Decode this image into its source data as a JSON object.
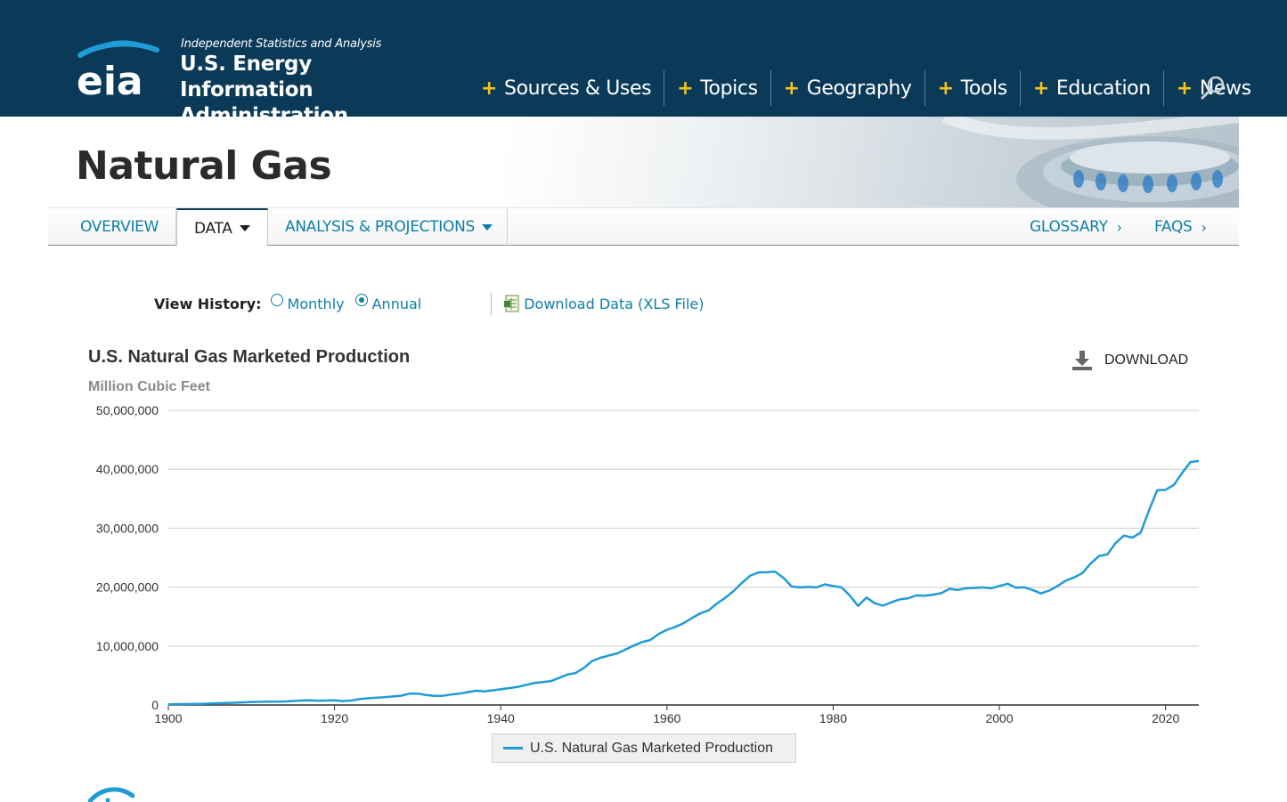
{
  "header": {
    "tagline": "Independent Statistics and Analysis",
    "org_name": "U.S. Energy Information Administration",
    "logo_text": "eia",
    "nav": [
      {
        "label": "Sources & Uses"
      },
      {
        "label": "Topics"
      },
      {
        "label": "Geography"
      },
      {
        "label": "Tools"
      },
      {
        "label": "Education"
      },
      {
        "label": "News"
      }
    ],
    "search_icon": "search-icon"
  },
  "page": {
    "title": "Natural Gas"
  },
  "subnav": {
    "overview": "OVERVIEW",
    "data": "DATA",
    "analysis": "ANALYSIS & PROJECTIONS",
    "glossary": "GLOSSARY",
    "faqs": "FAQS",
    "chevron": "›"
  },
  "controls": {
    "view_history_label": "View History:",
    "options": [
      {
        "label": "Monthly",
        "checked": false
      },
      {
        "label": "Annual",
        "checked": true
      }
    ],
    "download_link": "Download Data (XLS File)"
  },
  "chart": {
    "download_label": "DOWNLOAD",
    "legend_label": "U.S. Natural Gas Marketed Production"
  },
  "colors": {
    "header_bg": "#0b3a59",
    "accent_yellow": "#f5c21b",
    "link_blue": "#0e7fa7",
    "series_line": "#1f9bd7"
  },
  "chart_data": {
    "type": "line",
    "title": "U.S. Natural Gas Marketed Production",
    "subtitle": "Million Cubic Feet",
    "xlabel": "",
    "ylabel": "",
    "xlim": [
      1900,
      2024
    ],
    "ylim": [
      0,
      50000000
    ],
    "x_ticks": [
      1900,
      1920,
      1940,
      1960,
      1980,
      2000,
      2020
    ],
    "y_ticks": [
      0,
      10000000,
      20000000,
      30000000,
      40000000,
      50000000
    ],
    "y_tick_labels": [
      "0",
      "10,000,000",
      "20,000,000",
      "30,000,000",
      "40,000,000",
      "50,000,000"
    ],
    "grid": true,
    "legend": "bottom-center",
    "series": [
      {
        "name": "U.S. Natural Gas Marketed Production",
        "points": [
          [
            1900,
            128000
          ],
          [
            1902,
            150000
          ],
          [
            1904,
            200000
          ],
          [
            1906,
            300000
          ],
          [
            1908,
            380000
          ],
          [
            1910,
            510000
          ],
          [
            1912,
            560000
          ],
          [
            1914,
            590000
          ],
          [
            1916,
            750000
          ],
          [
            1917,
            800000
          ],
          [
            1918,
            720000
          ],
          [
            1920,
            800000
          ],
          [
            1921,
            660000
          ],
          [
            1922,
            760000
          ],
          [
            1923,
            1000000
          ],
          [
            1924,
            1140000
          ],
          [
            1926,
            1310000
          ],
          [
            1928,
            1570000
          ],
          [
            1929,
            1920000
          ],
          [
            1930,
            1940000
          ],
          [
            1931,
            1690000
          ],
          [
            1932,
            1560000
          ],
          [
            1933,
            1550000
          ],
          [
            1934,
            1770000
          ],
          [
            1935,
            1920000
          ],
          [
            1936,
            2170000
          ],
          [
            1937,
            2410000
          ],
          [
            1938,
            2300000
          ],
          [
            1940,
            2660000
          ],
          [
            1942,
            3050000
          ],
          [
            1944,
            3710000
          ],
          [
            1946,
            4030000
          ],
          [
            1947,
            4580000
          ],
          [
            1948,
            5150000
          ],
          [
            1949,
            5420000
          ],
          [
            1950,
            6280000
          ],
          [
            1951,
            7460000
          ],
          [
            1952,
            8010000
          ],
          [
            1953,
            8400000
          ],
          [
            1954,
            8740000
          ],
          [
            1955,
            9410000
          ],
          [
            1956,
            10080000
          ],
          [
            1957,
            10680000
          ],
          [
            1958,
            11030000
          ],
          [
            1959,
            12050000
          ],
          [
            1960,
            12770000
          ],
          [
            1961,
            13250000
          ],
          [
            1962,
            13880000
          ],
          [
            1963,
            14750000
          ],
          [
            1964,
            15550000
          ],
          [
            1965,
            16040000
          ],
          [
            1966,
            17210000
          ],
          [
            1967,
            18170000
          ],
          [
            1968,
            19320000
          ],
          [
            1969,
            20700000
          ],
          [
            1970,
            21920000
          ],
          [
            1971,
            22490000
          ],
          [
            1972,
            22530000
          ],
          [
            1973,
            22650000
          ],
          [
            1974,
            21600000
          ],
          [
            1975,
            20110000
          ],
          [
            1976,
            19950000
          ],
          [
            1977,
            20030000
          ],
          [
            1978,
            19970000
          ],
          [
            1979,
            20470000
          ],
          [
            1980,
            20180000
          ],
          [
            1981,
            19960000
          ],
          [
            1982,
            18580000
          ],
          [
            1983,
            16820000
          ],
          [
            1984,
            18230000
          ],
          [
            1985,
            17270000
          ],
          [
            1986,
            16860000
          ],
          [
            1987,
            17430000
          ],
          [
            1988,
            17920000
          ],
          [
            1989,
            18100000
          ],
          [
            1990,
            18590000
          ],
          [
            1991,
            18530000
          ],
          [
            1992,
            18710000
          ],
          [
            1993,
            18980000
          ],
          [
            1994,
            19710000
          ],
          [
            1995,
            19510000
          ],
          [
            1996,
            19810000
          ],
          [
            1997,
            19870000
          ],
          [
            1998,
            19960000
          ],
          [
            1999,
            19800000
          ],
          [
            2000,
            20200000
          ],
          [
            2001,
            20570000
          ],
          [
            2002,
            19890000
          ],
          [
            2003,
            19970000
          ],
          [
            2004,
            19520000
          ],
          [
            2005,
            18930000
          ],
          [
            2006,
            19410000
          ],
          [
            2007,
            20200000
          ],
          [
            2008,
            21110000
          ],
          [
            2009,
            21650000
          ],
          [
            2010,
            22380000
          ],
          [
            2011,
            24040000
          ],
          [
            2012,
            25280000
          ],
          [
            2013,
            25560000
          ],
          [
            2014,
            27500000
          ],
          [
            2015,
            28750000
          ],
          [
            2016,
            28400000
          ],
          [
            2017,
            29240000
          ],
          [
            2018,
            33010000
          ],
          [
            2019,
            36450000
          ],
          [
            2020,
            36520000
          ],
          [
            2021,
            37340000
          ],
          [
            2022,
            39400000
          ],
          [
            2023,
            41240000
          ],
          [
            2024,
            41400000
          ]
        ]
      }
    ]
  }
}
